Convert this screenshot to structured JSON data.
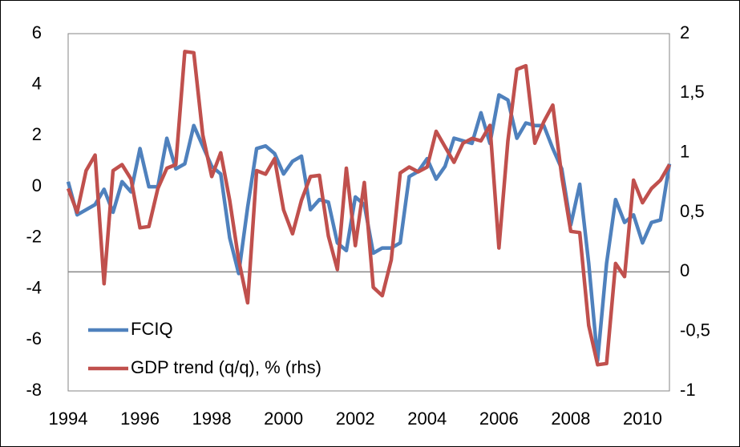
{
  "chart_data": {
    "type": "line",
    "x": [
      1994,
      1994.25,
      1994.5,
      1994.75,
      1995,
      1995.25,
      1995.5,
      1995.75,
      1996,
      1996.25,
      1996.5,
      1996.75,
      1997,
      1997.25,
      1997.5,
      1997.75,
      1998,
      1998.25,
      1998.5,
      1998.75,
      1999,
      1999.25,
      1999.5,
      1999.75,
      2000,
      2000.25,
      2000.5,
      2000.75,
      2001,
      2001.25,
      2001.5,
      2001.75,
      2002,
      2002.25,
      2002.5,
      2002.75,
      2003,
      2003.25,
      2003.5,
      2003.75,
      2004,
      2004.25,
      2004.5,
      2004.75,
      2005,
      2005.25,
      2005.5,
      2005.75,
      2006,
      2006.25,
      2006.5,
      2006.75,
      2007,
      2007.25,
      2007.5,
      2007.75,
      2008,
      2008.25,
      2008.5,
      2008.75,
      2009,
      2009.25,
      2009.5,
      2009.75,
      2010,
      2010.25,
      2010.5,
      2010.75
    ],
    "series": [
      {
        "name": "FCIQ",
        "color": "#4f81bd",
        "values": [
          0.2,
          -1.1,
          -0.9,
          -0.7,
          -0.1,
          -1.0,
          0.2,
          -0.2,
          1.5,
          0.0,
          0.0,
          1.9,
          0.7,
          0.9,
          2.4,
          1.6,
          0.8,
          0.5,
          -2.0,
          -3.4,
          -0.8,
          1.5,
          1.6,
          1.3,
          0.5,
          1.0,
          1.2,
          -0.9,
          -0.5,
          -0.6,
          -2.2,
          -2.5,
          -0.4,
          -0.7,
          -2.6,
          -2.4,
          -2.4,
          -2.2,
          0.4,
          0.6,
          1.1,
          0.3,
          0.8,
          1.9,
          1.8,
          1.7,
          2.9,
          1.7,
          3.6,
          3.4,
          1.9,
          2.5,
          2.4,
          2.4,
          1.5,
          0.7,
          -1.5,
          0.1,
          -3.0,
          -6.8,
          -3.0,
          -0.5,
          -1.4,
          -1.1,
          -2.2,
          -1.4,
          -1.3,
          0.9
        ]
      },
      {
        "name": "GDP trend (q/q), % (rhs)",
        "color": "#c0504d",
        "axis": "y2",
        "values": [
          0.7,
          0.5,
          0.85,
          0.98,
          -0.1,
          0.85,
          0.9,
          0.78,
          0.37,
          0.38,
          0.7,
          0.87,
          0.9,
          1.85,
          1.84,
          1.15,
          0.8,
          1.0,
          0.6,
          0.1,
          -0.26,
          0.85,
          0.82,
          0.95,
          0.52,
          0.32,
          0.6,
          0.8,
          0.81,
          0.3,
          0.02,
          0.87,
          0.22,
          0.75,
          -0.13,
          -0.2,
          0.1,
          0.83,
          0.88,
          0.84,
          0.88,
          1.18,
          1.05,
          0.92,
          1.08,
          1.12,
          1.1,
          1.23,
          0.2,
          1.1,
          1.7,
          1.73,
          1.08,
          1.26,
          1.4,
          0.8,
          0.34,
          0.33,
          -0.45,
          -0.78,
          -0.77,
          0.07,
          -0.04,
          0.77,
          0.58,
          0.7,
          0.77,
          0.9
        ]
      }
    ],
    "xlim": [
      1994,
      2010.75
    ],
    "xticks": [
      1994,
      1996,
      1998,
      2000,
      2002,
      2004,
      2006,
      2008,
      2010
    ],
    "ylim": [
      -8,
      6
    ],
    "yticks": [
      -8,
      -6,
      -4,
      -2,
      0,
      2,
      4,
      6
    ],
    "y2lim": [
      -1,
      2
    ],
    "y2ticks": [
      -1,
      {
        "value": -0.5,
        "label": "-0,5"
      },
      0,
      {
        "value": 0.5,
        "label": "0,5"
      },
      1,
      {
        "value": 1.5,
        "label": "1,5"
      },
      2
    ],
    "legend": "lower-left"
  }
}
